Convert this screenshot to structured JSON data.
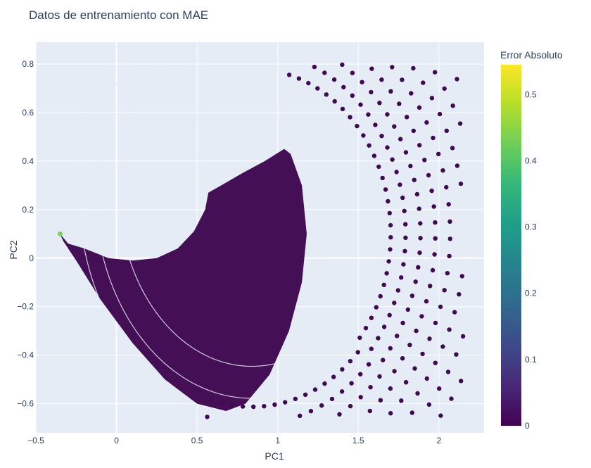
{
  "chart_data": {
    "type": "scatter",
    "title": "Datos de entrenamiento con MAE",
    "xlabel": "PC1",
    "ylabel": "PC2",
    "xlim": [
      -0.5,
      2.28
    ],
    "ylim": [
      -0.72,
      0.89
    ],
    "x_ticks": [
      -0.5,
      0,
      0.5,
      1,
      1.5,
      2
    ],
    "x_tick_labels": [
      "−0.5",
      "0",
      "0.5",
      "1",
      "1.5",
      "2"
    ],
    "y_ticks": [
      -0.6,
      -0.4,
      -0.2,
      0,
      0.2,
      0.4,
      0.6,
      0.8
    ],
    "y_tick_labels": [
      "−0.6",
      "−0.4",
      "−0.2",
      "0",
      "0.2",
      "0.4",
      "0.6",
      "0.8"
    ],
    "grid": true,
    "colorbar": {
      "title": "Error Absoluto",
      "range": [
        0,
        0.545
      ],
      "ticks": [
        0,
        0.1,
        0.2,
        0.3,
        0.4,
        0.5
      ],
      "tick_labels": [
        "0",
        "0.1",
        "0.2",
        "0.3",
        "0.4",
        "0.5"
      ],
      "colorscale": "viridis"
    },
    "region": {
      "description_points_pc": {
        "tip": [
          -0.35,
          0.1
        ],
        "inner_arc_center": [
          0.84,
          0.28
        ],
        "bottom": [
          0.68,
          -0.63
        ],
        "outer_top": [
          1.55,
          0.79
        ],
        "right_extreme": [
          2.13,
          0.47
        ]
      },
      "dominant_error": 0.02,
      "tip_error": 0.45
    }
  },
  "colors": {
    "plot_bg": "#e5ecf6",
    "grid": "#ffffff",
    "marker": "#440f55",
    "marker_dark": "#3f0a4f",
    "tip_marker": "#7ad151"
  }
}
